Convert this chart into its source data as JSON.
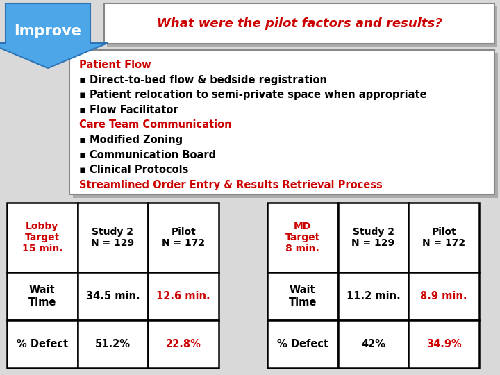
{
  "title": "What were the pilot factors and results?",
  "title_color": "#CC0000",
  "improve_label": "Improve",
  "bullet_lines": [
    {
      "text": "Patient Flow",
      "color": "#CC0000",
      "bold": true
    },
    {
      "text": "▪ Direct-to-bed flow & bedside registration",
      "color": "#000000",
      "bold": true
    },
    {
      "text": "▪ Patient relocation to semi-private space when appropriate",
      "color": "#000000",
      "bold": true
    },
    {
      "text": "▪ Flow Facilitator",
      "color": "#000000",
      "bold": true
    },
    {
      "text": "Care Team Communication",
      "color": "#CC0000",
      "bold": true
    },
    {
      "text": "▪ Modified Zoning",
      "color": "#000000",
      "bold": true
    },
    {
      "text": "▪ Communication Board",
      "color": "#000000",
      "bold": true
    },
    {
      "text": "▪ Clinical Protocols",
      "color": "#000000",
      "bold": true
    },
    {
      "text": "Streamlined Order Entry & Results Retrieval Process",
      "color": "#CC0000",
      "bold": true
    }
  ],
  "table1": {
    "header": [
      {
        "text": "Lobby\nTarget\n15 min.",
        "color": "#CC0000"
      },
      {
        "text": "Study 2\nN = 129",
        "color": "#000000"
      },
      {
        "text": "Pilot\nN = 172",
        "color": "#000000"
      }
    ],
    "rows": [
      [
        {
          "text": "Wait\nTime",
          "color": "#000000"
        },
        {
          "text": "34.5 min.",
          "color": "#000000"
        },
        {
          "text": "12.6 min.",
          "color": "#CC0000"
        }
      ],
      [
        {
          "text": "% Defect",
          "color": "#000000"
        },
        {
          "text": "51.2%",
          "color": "#000000"
        },
        {
          "text": "22.8%",
          "color": "#CC0000"
        }
      ]
    ]
  },
  "table2": {
    "header": [
      {
        "text": "MD\nTarget\n8 min.",
        "color": "#CC0000"
      },
      {
        "text": "Study 2\nN = 129",
        "color": "#000000"
      },
      {
        "text": "Pilot\nN = 172",
        "color": "#000000"
      }
    ],
    "rows": [
      [
        {
          "text": "Wait\nTime",
          "color": "#000000"
        },
        {
          "text": "11.2 min.",
          "color": "#000000"
        },
        {
          "text": "8.9 min.",
          "color": "#CC0000"
        }
      ],
      [
        {
          "text": "% Defect",
          "color": "#000000"
        },
        {
          "text": "42%",
          "color": "#000000"
        },
        {
          "text": "34.9%",
          "color": "#CC0000"
        }
      ]
    ]
  },
  "bg_color": "#D9D9D9",
  "arrow_color": "#4DA6E8",
  "arrow_edge": "#2E75B6",
  "title_box_color": "#FFFFFF",
  "bullet_box_color": "#FFFFFF",
  "shadow_color": "#AAAAAA"
}
